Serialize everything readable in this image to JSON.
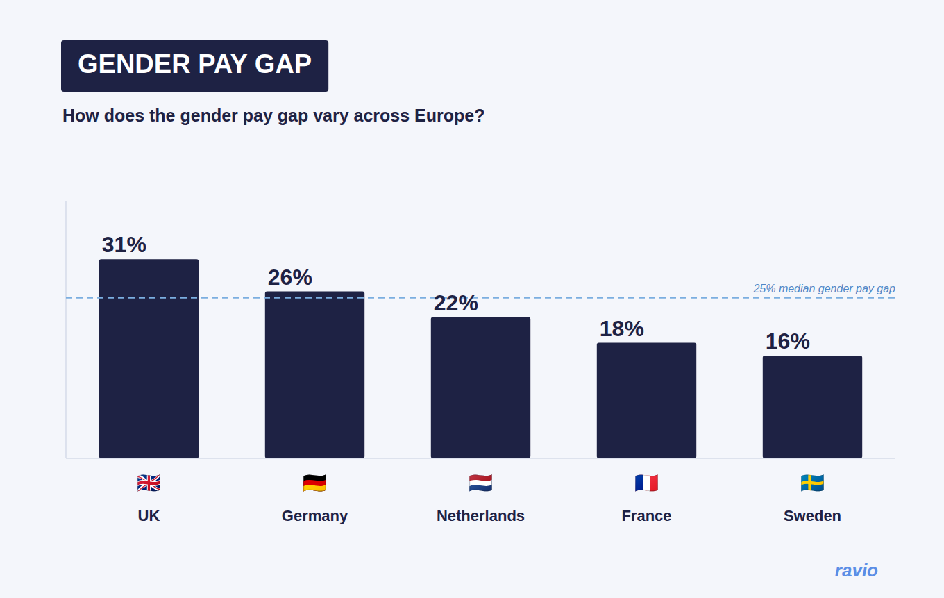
{
  "chart_data": {
    "type": "bar",
    "title": "GENDER PAY GAP",
    "subtitle": "How does the gender pay gap vary across Europe?",
    "categories": [
      "UK",
      "Germany",
      "Netherlands",
      "France",
      "Sweden"
    ],
    "flags": [
      "🇬🇧",
      "🇩🇪",
      "🇳🇱",
      "🇫🇷",
      "🇸🇪"
    ],
    "values": [
      31,
      26,
      22,
      18,
      16
    ],
    "value_labels": [
      "31%",
      "26%",
      "22%",
      "18%",
      "16%"
    ],
    "data_labels": true,
    "color": "#1e2244",
    "ylim": [
      0,
      40
    ],
    "tick_labels": "x",
    "grid": false,
    "reference_line": {
      "value": 25,
      "label": "25% median gender pay gap",
      "color": "#7baee0"
    },
    "watermark": "ravio"
  }
}
